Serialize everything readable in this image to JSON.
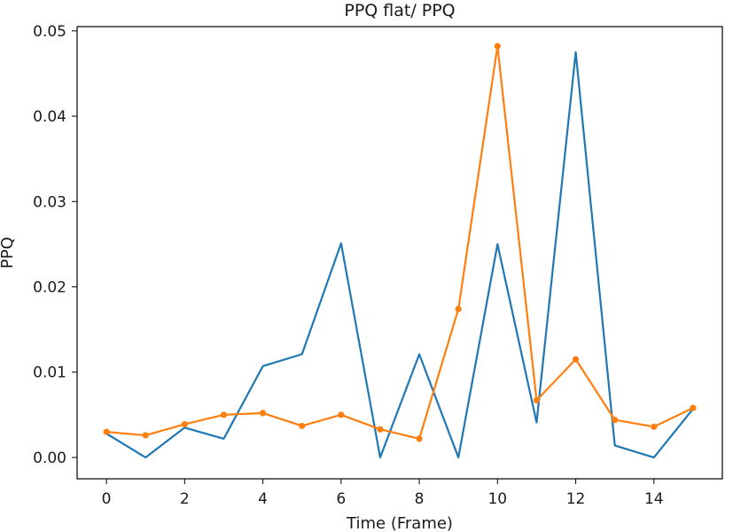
{
  "chart_data": {
    "type": "line",
    "title": "PPQ flat/ PPQ",
    "xlabel": "Time (Frame)",
    "ylabel": "PPQ",
    "xlim": [
      -0.75,
      15.75
    ],
    "ylim": [
      -0.0025,
      0.0505
    ],
    "x_ticks": [
      0,
      2,
      4,
      6,
      8,
      10,
      12,
      14
    ],
    "x_tick_labels": [
      "0",
      "2",
      "4",
      "6",
      "8",
      "10",
      "12",
      "14"
    ],
    "y_ticks": [
      0.0,
      0.01,
      0.02,
      0.03,
      0.04,
      0.05
    ],
    "y_tick_labels": [
      "0.00",
      "0.01",
      "0.02",
      "0.03",
      "0.04",
      "0.05"
    ],
    "grid": false,
    "legend": false,
    "x": [
      0,
      1,
      2,
      3,
      4,
      5,
      6,
      7,
      8,
      9,
      10,
      11,
      12,
      13,
      14,
      15
    ],
    "series": [
      {
        "color": "#1f77b4",
        "marker": "none",
        "values": [
          0.0028,
          0.0,
          0.0035,
          0.0022,
          0.0107,
          0.0121,
          0.0251,
          0.0,
          0.0121,
          0.0,
          0.025,
          0.0041,
          0.0475,
          0.0014,
          0.0,
          0.0057
        ]
      },
      {
        "color": "#ff7f0e",
        "marker": "circle",
        "values": [
          0.003,
          0.0026,
          0.0039,
          0.005,
          0.0052,
          0.0037,
          0.005,
          0.0033,
          0.0022,
          0.0174,
          0.0482,
          0.0067,
          0.0115,
          0.0044,
          0.0036,
          0.0058
        ]
      }
    ]
  }
}
